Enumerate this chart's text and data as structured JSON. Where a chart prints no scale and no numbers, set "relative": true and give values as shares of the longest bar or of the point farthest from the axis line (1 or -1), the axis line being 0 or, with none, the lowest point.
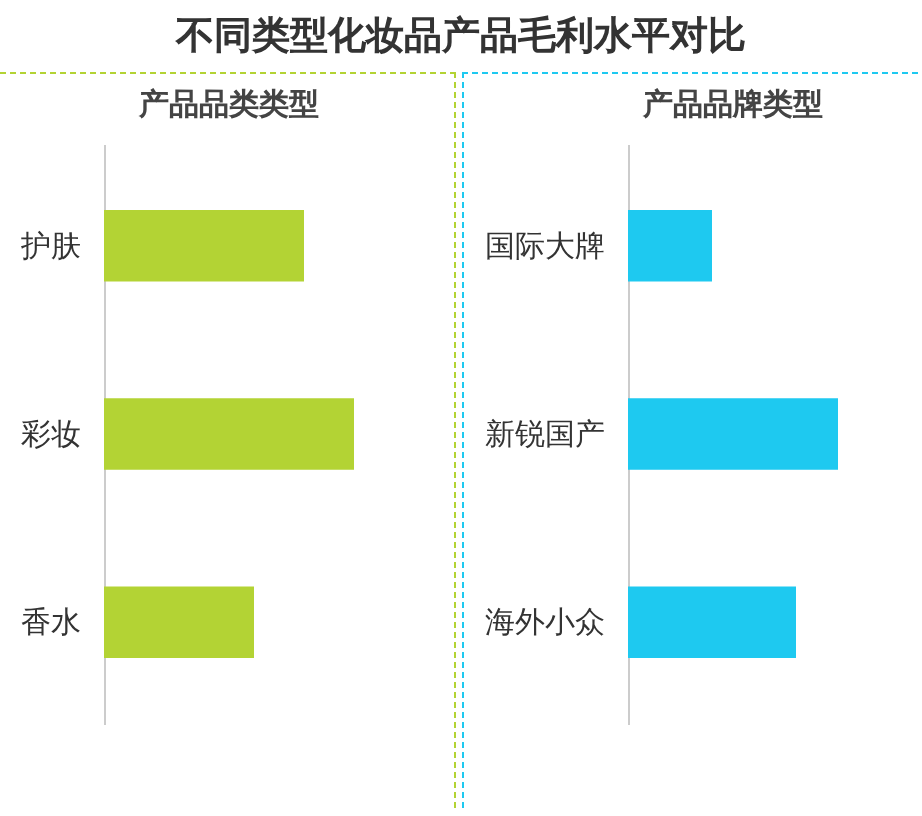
{
  "chart_data": [
    {
      "type": "bar",
      "title": "不同类型化妆品产品毛利水平对比",
      "subtitle": "产品品类类型",
      "orientation": "horizontal",
      "relative": true,
      "categories": [
        "护肤",
        "彩妆",
        "香水"
      ],
      "values": [
        0.8,
        1,
        0.6
      ],
      "color": "#b3d334"
    },
    {
      "type": "bar",
      "subtitle": "产品品牌类型",
      "orientation": "horizontal",
      "relative": true,
      "categories": [
        "国际大牌",
        "新锐国产",
        "海外小众"
      ],
      "values": [
        0.4,
        1,
        0.8
      ],
      "color": "#1ec9f0"
    }
  ]
}
